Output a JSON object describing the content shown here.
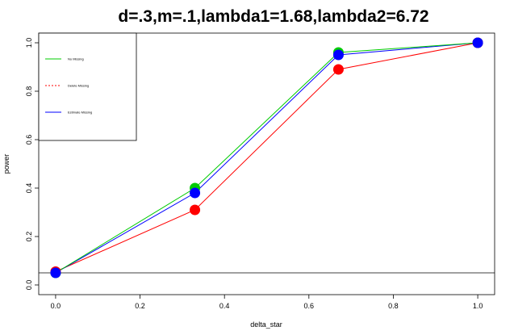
{
  "chart_data": {
    "type": "line",
    "title": "d=.3,m=.1,lambda1=1.68,lambda2=6.72",
    "xlabel": "delta_star",
    "ylabel": "power",
    "xlim": [
      -0.04,
      1.04
    ],
    "ylim": [
      -0.04,
      1.04
    ],
    "xticks": [
      0.0,
      0.2,
      0.4,
      0.6,
      0.8,
      1.0
    ],
    "xtick_labels": [
      "0.0",
      "0.2",
      "0.4",
      "0.6",
      "0.8",
      "1.0"
    ],
    "yticks": [
      0.0,
      0.2,
      0.4,
      0.6,
      0.8,
      1.0
    ],
    "ytick_labels": [
      "0.0",
      "0.2",
      "0.4",
      "0.6",
      "0.8",
      "1.0"
    ],
    "reference_line_y": 0.05,
    "legend_position": "top-left",
    "x": [
      0.0,
      0.33,
      0.67,
      1.0
    ],
    "series": [
      {
        "name": "No Missing",
        "values": [
          0.05,
          0.4,
          0.96,
          1.0
        ],
        "color": "#00cc00",
        "dash": "solid"
      },
      {
        "name": "Delete Missing",
        "values": [
          0.055,
          0.31,
          0.89,
          1.0
        ],
        "color": "#ff0000",
        "dash": "dashed"
      },
      {
        "name": "Estimate Missing",
        "values": [
          0.05,
          0.38,
          0.95,
          1.0
        ],
        "color": "#0000ff",
        "dash": "solid"
      }
    ],
    "line_colors": {
      "No Missing": "#00cc00",
      "Delete Missing": "#ff0000",
      "Estimate Missing": "#0000ff"
    },
    "grid": false
  }
}
